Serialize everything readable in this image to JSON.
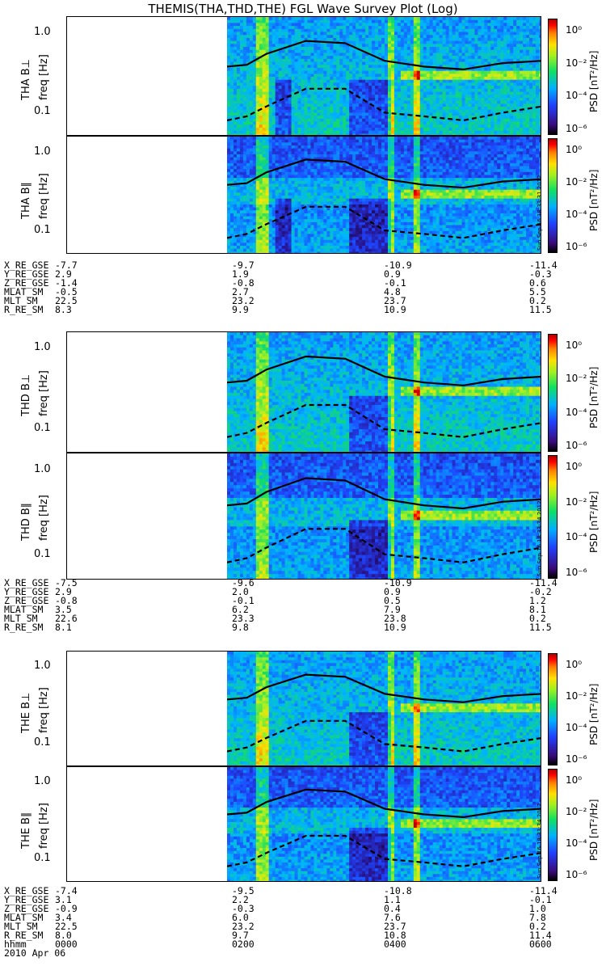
{
  "title": "THEMIS(THA,THD,THE) FGL Wave Survey Plot (Log)",
  "colorbar": {
    "ticks": [
      "10⁰",
      "10⁻²",
      "10⁻⁴",
      "10⁻⁶"
    ],
    "label": "PSD [nT²/Hz]"
  },
  "y_ticks": [
    "1.0",
    "0.1"
  ],
  "freq_label": "freq [Hz]",
  "panels": [
    {
      "probe": "THA B⊥",
      "stamp": ""
    },
    {
      "probe": "THA B∥",
      "stamp": "Sun Sep 16 18:33:31 2012"
    },
    {
      "probe": "THD B⊥",
      "stamp": ""
    },
    {
      "probe": "THD B∥",
      "stamp": "Sun Sep 16 18:33:34 2012"
    },
    {
      "probe": "THE B⊥",
      "stamp": ""
    },
    {
      "probe": "THE B∥",
      "stamp": "Sun Sep 16 18:33:34 2012"
    }
  ],
  "ephemeris": [
    {
      "rows": [
        {
          "name": "X_RE_GSE",
          "v": [
            "-7.7",
            "-9.7",
            "-10.9",
            "-11.4"
          ]
        },
        {
          "name": "Y_RE_GSE",
          "v": [
            "2.9",
            "1.9",
            "0.9",
            "-0.3"
          ]
        },
        {
          "name": "Z_RE_GSE",
          "v": [
            "-1.4",
            "-0.8",
            "-0.1",
            "0.6"
          ]
        },
        {
          "name": "MLAT_SM",
          "v": [
            "-0.5",
            "2.7",
            "4.8",
            "5.5"
          ]
        },
        {
          "name": "MLT_SM",
          "v": [
            "22.5",
            "23.2",
            "23.7",
            "0.2"
          ]
        },
        {
          "name": "R_RE_SM",
          "v": [
            "8.3",
            "9.9",
            "10.9",
            "11.5"
          ]
        }
      ]
    },
    {
      "rows": [
        {
          "name": "X_RE_GSE",
          "v": [
            "-7.5",
            "-9.6",
            "-10.9",
            "-11.4"
          ]
        },
        {
          "name": "Y_RE_GSE",
          "v": [
            "2.9",
            "2.0",
            "0.9",
            "-0.2"
          ]
        },
        {
          "name": "Z_RE_GSE",
          "v": [
            "-0.8",
            "-0.1",
            "0.5",
            "1.2"
          ]
        },
        {
          "name": "MLAT_SM",
          "v": [
            "3.5",
            "6.2",
            "7.9",
            "8.1"
          ]
        },
        {
          "name": "MLT_SM",
          "v": [
            "22.6",
            "23.3",
            "23.8",
            "0.2"
          ]
        },
        {
          "name": "R_RE_SM",
          "v": [
            "8.1",
            "9.8",
            "10.9",
            "11.5"
          ]
        }
      ]
    },
    {
      "rows": [
        {
          "name": "X_RE_GSE",
          "v": [
            "-7.4",
            "-9.5",
            "-10.8",
            "-11.4"
          ]
        },
        {
          "name": "Y_RE_GSE",
          "v": [
            "3.1",
            "2.2",
            "1.1",
            "-0.1"
          ]
        },
        {
          "name": "Z_RE_GSE",
          "v": [
            "-0.9",
            "-0.3",
            "0.4",
            "1.0"
          ]
        },
        {
          "name": "MLAT_SM",
          "v": [
            "3.4",
            "6.0",
            "7.6",
            "7.8"
          ]
        },
        {
          "name": "MLT_SM",
          "v": [
            "22.5",
            "23.2",
            "23.7",
            "0.2"
          ]
        },
        {
          "name": "R_RE_SM",
          "v": [
            "8.0",
            "9.7",
            "10.8",
            "11.4"
          ]
        },
        {
          "name": "hhmm",
          "v": [
            "0000",
            "0200",
            "0400",
            "0600"
          ]
        }
      ]
    }
  ],
  "date": "2010 Apr 06",
  "chart_data": {
    "type": "heatmap",
    "title": "THEMIS(THA,THD,THE) FGL Wave Survey Plot (Log)",
    "xlabel": "hhmm",
    "x_ticks": [
      "0000",
      "0200",
      "0400",
      "0600"
    ],
    "xlim": [
      "0000",
      "0600"
    ],
    "ylabel": "freq [Hz]",
    "ylim": [
      0.05,
      1.6
    ],
    "y_scale": "log",
    "y_ticks": [
      0.1,
      1.0
    ],
    "colorbar": {
      "label": "PSD [nT²/Hz]",
      "scale": "log",
      "ticks": [
        1,
        0.01,
        0.0001,
        1e-06
      ]
    },
    "data_start_hhmm": "0200",
    "lines": [
      {
        "style": "solid",
        "x": [
          "0200",
          "0215",
          "0230",
          "0300",
          "0330",
          "0400",
          "0430",
          "0500",
          "0530",
          "0600"
        ],
        "y": [
          0.38,
          0.4,
          0.55,
          0.8,
          0.75,
          0.45,
          0.38,
          0.35,
          0.42,
          0.45
        ]
      },
      {
        "style": "dashed",
        "x": [
          "0200",
          "0215",
          "0230",
          "0300",
          "0330",
          "0400",
          "0430",
          "0500",
          "0530",
          "0600"
        ],
        "y": [
          0.08,
          0.09,
          0.12,
          0.2,
          0.2,
          0.1,
          0.09,
          0.08,
          0.1,
          0.12
        ]
      }
    ],
    "grid": false
  }
}
